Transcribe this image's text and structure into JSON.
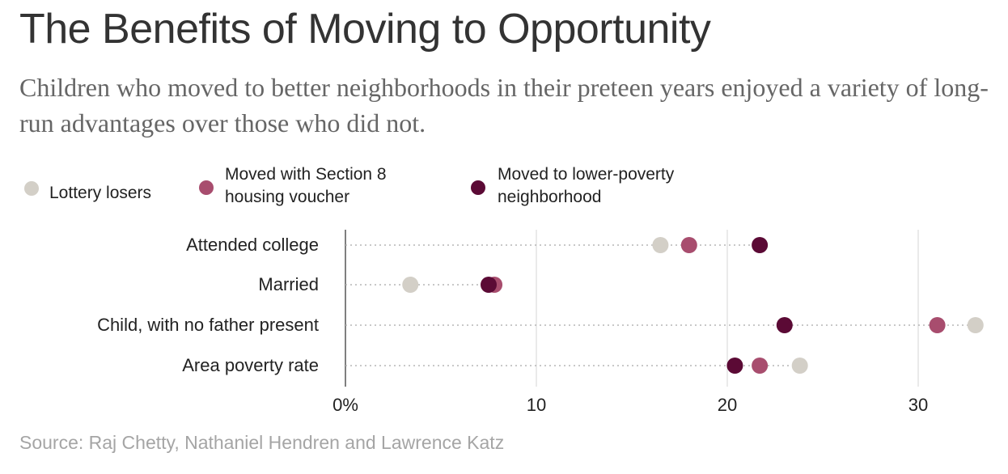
{
  "header": {
    "title": "The Benefits of Moving to Opportunity",
    "subtitle": "Children who moved to better neighborhoods in their preteen years enjoyed a variety of long-run advantages over those who did not."
  },
  "legend": [
    {
      "line1": "Lottery losers",
      "line2": "",
      "color": "#d3cfc7"
    },
    {
      "line1": "Moved with Section 8",
      "line2": "housing voucher",
      "color": "#a84d6e"
    },
    {
      "line1": "Moved to lower-poverty",
      "line2": "neighborhood",
      "color": "#5b0a35"
    }
  ],
  "chart_data": {
    "type": "scatter",
    "categories": [
      "Attended college",
      "Married",
      "Child, with no father present",
      "Area poverty rate"
    ],
    "series": [
      {
        "name": "Lottery losers",
        "color": "#d3cfc7",
        "values": [
          16.5,
          3.4,
          33.0,
          23.8
        ]
      },
      {
        "name": "Moved with Section 8 housing voucher",
        "color": "#a84d6e",
        "values": [
          18.0,
          7.8,
          31.0,
          21.7
        ]
      },
      {
        "name": "Moved to lower-poverty neighborhood",
        "color": "#5b0a35",
        "values": [
          21.7,
          7.5,
          23.0,
          20.4
        ]
      }
    ],
    "xlim": [
      0,
      34
    ],
    "xticks": [
      0,
      10,
      20,
      30
    ],
    "xtick_labels": [
      "0%",
      "10",
      "20",
      "30"
    ],
    "grid": true
  },
  "source": "Source: Raj Chetty, Nathaniel Hendren and Lawrence Katz"
}
